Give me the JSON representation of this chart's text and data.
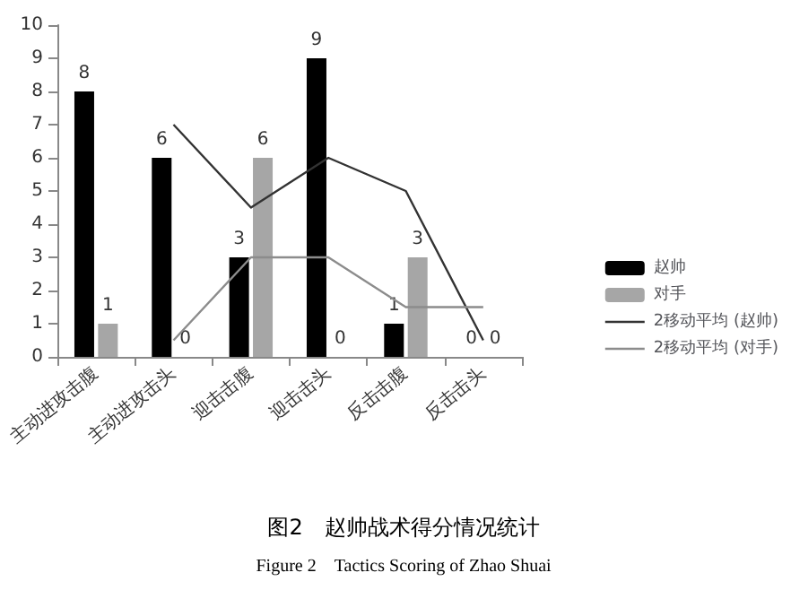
{
  "chart_data": {
    "type": "bar",
    "title": "图2　赵帅战术得分情况统计",
    "subtitle": "Figure 2　Tactics Scoring of Zhao Shuai",
    "categories": [
      "主动进攻击腹",
      "主动进攻击头",
      "迎击击腹",
      "迎击击头",
      "反击击腹",
      "反击击头"
    ],
    "series": [
      {
        "name": "赵帅",
        "color": "#000000",
        "values": [
          8,
          6,
          3,
          9,
          1,
          0
        ],
        "value_labels": [
          "8",
          "6",
          "3",
          "9",
          "1",
          "0"
        ]
      },
      {
        "name": "对手",
        "color": "#a6a6a6",
        "values": [
          1,
          0,
          6,
          0,
          3,
          0
        ],
        "value_labels": [
          "1",
          "0",
          "6",
          "0",
          "3",
          "0"
        ]
      },
      {
        "name": "2移动平均 (赵帅)",
        "type": "line",
        "color": "#333333",
        "values": [
          null,
          7,
          4.5,
          6,
          5,
          0.5
        ]
      },
      {
        "name": "2移动平均 (对手)",
        "type": "line",
        "color": "#8c8c8c",
        "values": [
          null,
          0.5,
          3,
          3,
          1.5,
          1.5
        ]
      }
    ],
    "ylim": [
      0,
      10
    ],
    "yticks": [
      0,
      1,
      2,
      3,
      4,
      5,
      6,
      7,
      8,
      9,
      10
    ],
    "legend": "right",
    "grid": false,
    "marker": "none"
  }
}
